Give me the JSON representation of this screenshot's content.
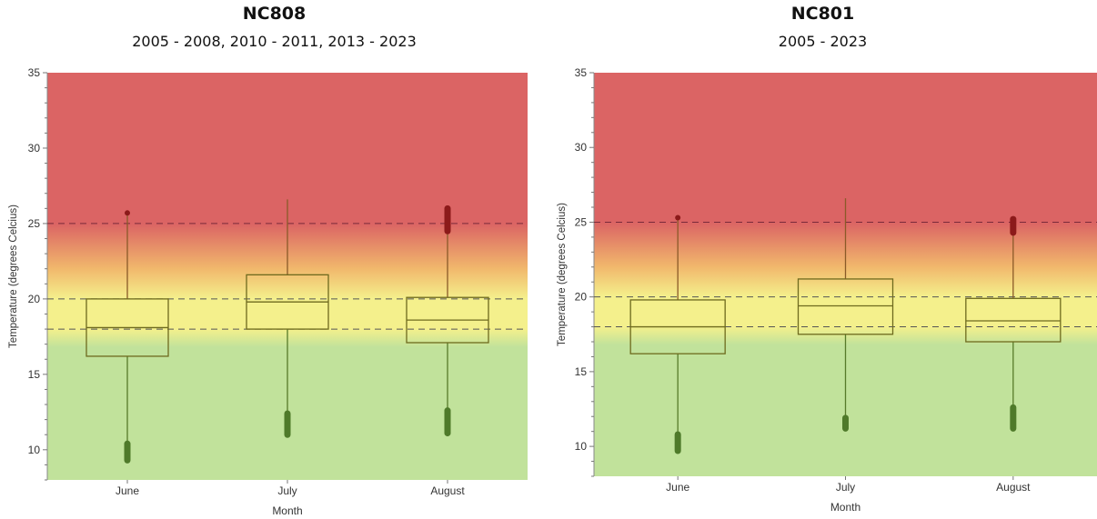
{
  "charts": [
    {
      "title": "NC808",
      "subtitle": "2005 - 2008, 2010 - 2011, 2013 - 2023"
    },
    {
      "title": "NC801",
      "subtitle": "2005 - 2023"
    }
  ],
  "colors": {
    "red_zone": "#db6464",
    "yellow_zone": "#f4f08c",
    "green_zone": "#c1e29b",
    "box_stroke": "#6e6a1e",
    "whisker_low": "#577a2a",
    "whisker_high": "#8a5a28",
    "outlier_low": "#4f7a2a",
    "outlier_high": "#8c1a1a",
    "threshold_line": "#555555",
    "upper_threshold_line": "#7a2a3a"
  },
  "chart_data": [
    {
      "type": "box",
      "title": "NC808",
      "subtitle": "2005 - 2008, 2010 - 2011, 2013 - 2023",
      "xlabel": "Month",
      "ylabel": "Temperature (degrees Celcius)",
      "ylim": [
        8,
        35
      ],
      "yticks": [
        10,
        15,
        20,
        25,
        30,
        35
      ],
      "thresholds": [
        18,
        20,
        25
      ],
      "categories": [
        "June",
        "July",
        "August"
      ],
      "boxes": [
        {
          "min": 10.5,
          "q1": 16.2,
          "median": 18.1,
          "q3": 20.0,
          "max": 25.7,
          "outliers_low": [
            9.3,
            10.4
          ],
          "outliers_high": [
            25.7,
            25.7
          ]
        },
        {
          "min": 12.5,
          "q1": 18.0,
          "median": 19.8,
          "q3": 21.6,
          "max": 26.6,
          "outliers_low": [
            11.0,
            12.4
          ],
          "outliers_high": []
        },
        {
          "min": 12.6,
          "q1": 17.1,
          "median": 18.6,
          "q3": 20.1,
          "max": 24.6,
          "outliers_low": [
            11.1,
            12.6
          ],
          "outliers_high": [
            24.5,
            26.0
          ]
        }
      ]
    },
    {
      "type": "box",
      "title": "NC801",
      "subtitle": "2005 - 2023",
      "xlabel": "Month",
      "ylabel": "Temperature (degrees Celcius)",
      "ylim": [
        8,
        35
      ],
      "yticks": [
        10,
        15,
        20,
        25,
        30,
        35
      ],
      "thresholds": [
        18,
        20,
        25
      ],
      "categories": [
        "June",
        "July",
        "August"
      ],
      "boxes": [
        {
          "min": 10.8,
          "q1": 16.2,
          "median": 18.0,
          "q3": 19.8,
          "max": 25.3,
          "outliers_low": [
            9.7,
            10.8
          ],
          "outliers_high": [
            25.3,
            25.3
          ]
        },
        {
          "min": 11.9,
          "q1": 17.5,
          "median": 19.4,
          "q3": 21.2,
          "max": 26.6,
          "outliers_low": [
            11.2,
            11.9
          ],
          "outliers_high": []
        },
        {
          "min": 12.6,
          "q1": 17.0,
          "median": 18.4,
          "q3": 19.9,
          "max": 24.3,
          "outliers_low": [
            11.2,
            12.6
          ],
          "outliers_high": [
            24.3,
            25.2
          ]
        }
      ]
    }
  ]
}
